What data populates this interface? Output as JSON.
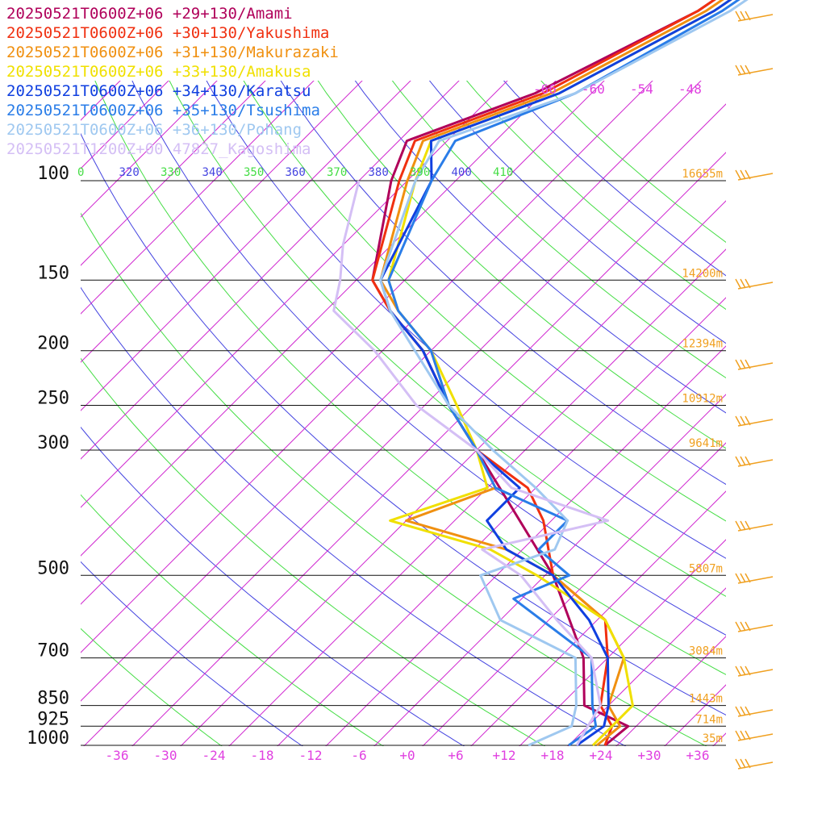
{
  "chart_data": {
    "type": "line",
    "subtype": "skew-T log-p sounding",
    "pressure_levels": [
      100,
      150,
      200,
      250,
      300,
      500,
      700,
      850,
      925,
      1000
    ],
    "pressure_labels": [
      "100",
      "150",
      "200",
      "250",
      "300",
      "500",
      "700",
      "850",
      "925",
      "1000"
    ],
    "x_ticks": [
      "-36",
      "-30",
      "-24",
      "-18",
      "-12",
      "-6",
      "+0",
      "+6",
      "+12",
      "+18",
      "+24",
      "+30",
      "+36"
    ],
    "x_tick_values": [
      -36,
      -30,
      -24,
      -18,
      -12,
      -6,
      0,
      6,
      12,
      18,
      24,
      30,
      36
    ],
    "top_isotherm_labels": [
      "-66",
      "-60",
      "-54",
      "-48"
    ],
    "theta_labels": [
      "0",
      "320",
      "330",
      "340",
      "350",
      "360",
      "370",
      "380",
      "390",
      "400",
      "410"
    ],
    "heights": [
      {
        "p": 100,
        "label": "16655m"
      },
      {
        "p": 150,
        "label": "14200m"
      },
      {
        "p": 200,
        "label": "12394m"
      },
      {
        "p": 250,
        "label": "10912m"
      },
      {
        "p": 300,
        "label": "9641m"
      },
      {
        "p": 500,
        "label": "5807m"
      },
      {
        "p": 700,
        "label": "3084m"
      },
      {
        "p": 850,
        "label": "1443m"
      },
      {
        "p": 925,
        "label": "714m"
      },
      {
        "p": 1000,
        "label": "35m"
      }
    ],
    "series": [
      {
        "name": "20250521T0600Z+06 +29+130/Amami",
        "color": "#b0005a",
        "temp": [
          [
            1000,
            24.5
          ],
          [
            925,
            25
          ],
          [
            850,
            17
          ],
          [
            700,
            11
          ],
          [
            500,
            -3
          ],
          [
            300,
            -28
          ],
          [
            250,
            -37
          ],
          [
            200,
            -47
          ],
          [
            170,
            -56
          ],
          [
            150,
            -62
          ],
          [
            100,
            -72
          ],
          [
            85,
            -75
          ],
          [
            70,
            -65
          ],
          [
            50,
            -55
          ],
          [
            35,
            -50
          ]
        ]
      },
      {
        "name": "20250521T0600Z+06 +30+130/Yakushima",
        "color": "#f03010",
        "temp": [
          [
            1000,
            24.5
          ],
          [
            925,
            23
          ],
          [
            850,
            19
          ],
          [
            700,
            14
          ],
          [
            600,
            9
          ],
          [
            500,
            -3
          ],
          [
            400,
            -11
          ],
          [
            350,
            -17
          ],
          [
            300,
            -28
          ],
          [
            250,
            -37
          ],
          [
            200,
            -47
          ],
          [
            170,
            -56
          ],
          [
            150,
            -62
          ],
          [
            100,
            -71
          ],
          [
            85,
            -74
          ],
          [
            70,
            -64
          ],
          [
            50,
            -55
          ],
          [
            35,
            -50
          ]
        ]
      },
      {
        "name": "20250521T0600Z+06 +31+130/Makurazaki",
        "color": "#f09010",
        "temp": [
          [
            1000,
            23.5
          ],
          [
            925,
            24
          ],
          [
            850,
            20
          ],
          [
            700,
            16
          ],
          [
            600,
            9
          ],
          [
            500,
            -3
          ],
          [
            450,
            -12
          ],
          [
            400,
            -28
          ],
          [
            350,
            -21
          ],
          [
            300,
            -28
          ],
          [
            250,
            -37
          ],
          [
            200,
            -46
          ],
          [
            170,
            -55
          ],
          [
            150,
            -61
          ],
          [
            100,
            -70
          ],
          [
            85,
            -73
          ],
          [
            70,
            -63
          ],
          [
            50,
            -54
          ],
          [
            35,
            -49
          ]
        ]
      },
      {
        "name": "20250521T0600Z+06 +33+130/Amakusa",
        "color": "#f0e000",
        "temp": [
          [
            1000,
            23
          ],
          [
            925,
            23
          ],
          [
            850,
            23
          ],
          [
            700,
            16
          ],
          [
            600,
            9
          ],
          [
            500,
            -5
          ],
          [
            450,
            -14
          ],
          [
            400,
            -30
          ],
          [
            350,
            -22
          ],
          [
            300,
            -28
          ],
          [
            250,
            -36
          ],
          [
            200,
            -46
          ],
          [
            170,
            -55
          ],
          [
            150,
            -60
          ],
          [
            100,
            -69
          ],
          [
            85,
            -72
          ],
          [
            70,
            -62
          ],
          [
            50,
            -53
          ],
          [
            35,
            -48
          ]
        ]
      },
      {
        "name": "20250521T0600Z+06 +34+130/Karatsu",
        "color": "#1040e0",
        "temp": [
          [
            1000,
            21
          ],
          [
            925,
            22
          ],
          [
            850,
            20
          ],
          [
            700,
            14
          ],
          [
            600,
            7
          ],
          [
            500,
            -3
          ],
          [
            450,
            -12
          ],
          [
            400,
            -18
          ],
          [
            350,
            -18
          ],
          [
            300,
            -28
          ],
          [
            250,
            -37
          ],
          [
            200,
            -47
          ],
          [
            170,
            -56
          ],
          [
            150,
            -61
          ],
          [
            100,
            -67
          ],
          [
            85,
            -72
          ],
          [
            70,
            -62
          ],
          [
            50,
            -53
          ],
          [
            35,
            -48
          ]
        ]
      },
      {
        "name": "20250521T0600Z+06 +35+130/Tsushima",
        "color": "#2a7de8",
        "temp": [
          [
            1000,
            20
          ],
          [
            925,
            21
          ],
          [
            850,
            18
          ],
          [
            700,
            12
          ],
          [
            550,
            -5
          ],
          [
            500,
            -1
          ],
          [
            450,
            -8
          ],
          [
            400,
            -8
          ],
          [
            350,
            -21
          ],
          [
            300,
            -28
          ],
          [
            250,
            -37
          ],
          [
            200,
            -46
          ],
          [
            170,
            -55
          ],
          [
            150,
            -60
          ],
          [
            100,
            -67
          ],
          [
            85,
            -69
          ],
          [
            70,
            -60
          ],
          [
            50,
            -52
          ],
          [
            35,
            -47
          ]
        ]
      },
      {
        "name": "20250521T0600Z+06 +36+130/Pohang",
        "color": "#9fc8f0",
        "temp": [
          [
            1000,
            15
          ],
          [
            925,
            18
          ],
          [
            850,
            16
          ],
          [
            700,
            10
          ],
          [
            600,
            -4
          ],
          [
            500,
            -12
          ],
          [
            450,
            -6
          ],
          [
            400,
            -8
          ],
          [
            350,
            -16
          ],
          [
            300,
            -26
          ],
          [
            250,
            -37
          ],
          [
            200,
            -48
          ],
          [
            170,
            -56
          ],
          [
            150,
            -61
          ],
          [
            100,
            -69
          ],
          [
            85,
            -71
          ],
          [
            70,
            -60
          ],
          [
            50,
            -51
          ],
          [
            35,
            -46
          ]
        ]
      },
      {
        "name": "20250521T1200Z+00 47827_Kagoshima",
        "color": "#d4bff5",
        "temp": [
          [
            1000,
            21
          ],
          [
            925,
            20
          ],
          [
            850,
            19
          ],
          [
            700,
            12
          ],
          [
            600,
            3
          ],
          [
            500,
            -7
          ],
          [
            450,
            -15
          ],
          [
            400,
            -3
          ],
          [
            350,
            -19
          ],
          [
            300,
            -28
          ],
          [
            250,
            -41
          ],
          [
            200,
            -53
          ],
          [
            170,
            -63
          ],
          [
            150,
            -66
          ],
          [
            130,
            -70
          ],
          [
            100,
            -76
          ]
        ]
      }
    ],
    "wind_barbs_color": "#f0a020"
  }
}
